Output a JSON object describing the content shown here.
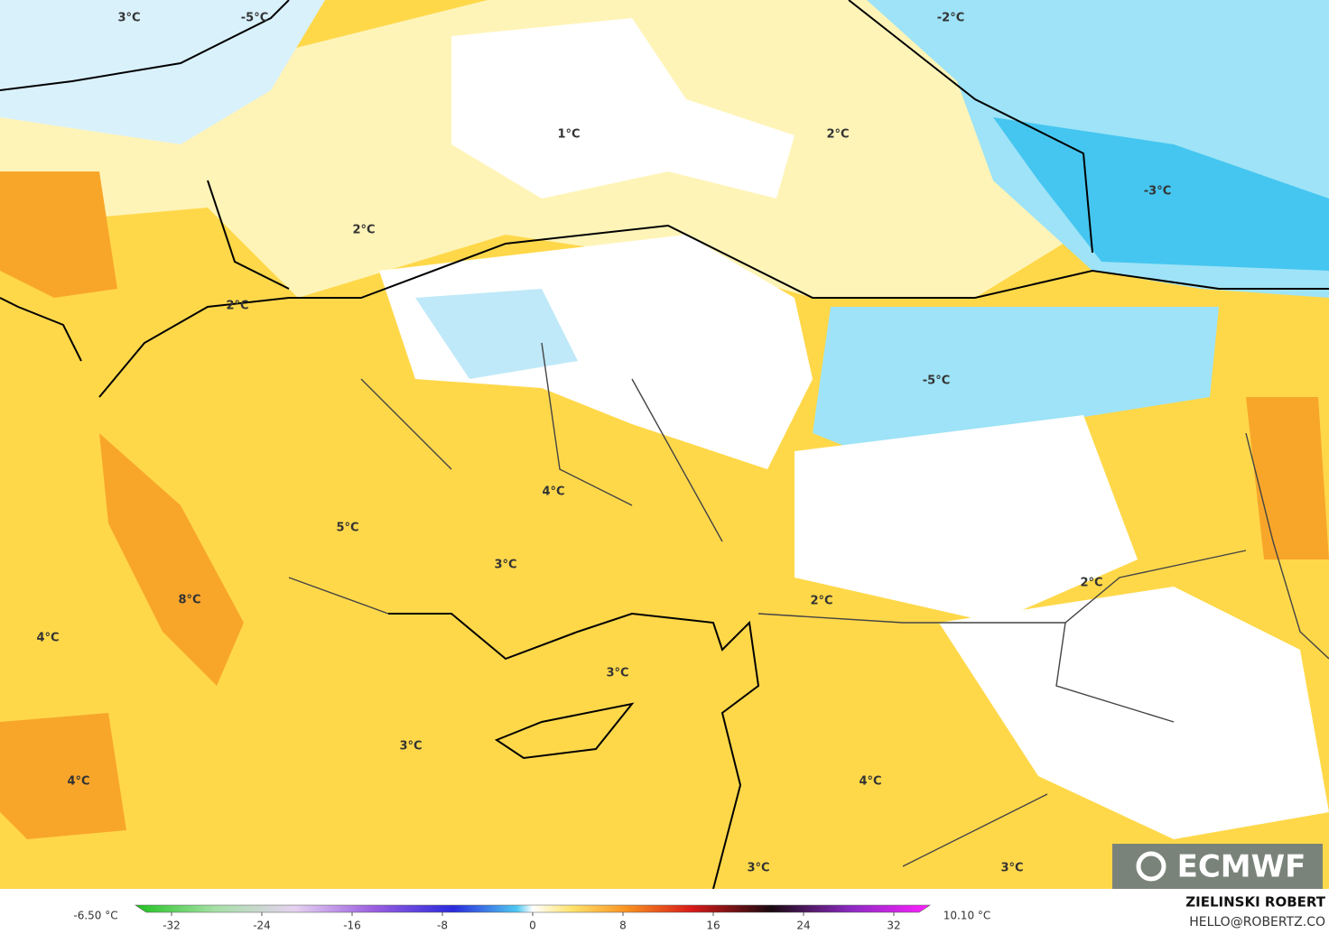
{
  "map": {
    "labels": [
      "3°C",
      "-5°C",
      "-2°C",
      "1°C",
      "2°C",
      "-3°C",
      "2°C",
      "2°C",
      "-5°C",
      "4°C",
      "5°C",
      "3°C",
      "2°C",
      "2°C",
      "8°C",
      "4°C",
      "3°C",
      "3°C",
      "4°C",
      "4°C",
      "3°C",
      "3°C"
    ]
  },
  "logo": "ECMWF",
  "colorbar": {
    "min_label": "-6.50 °C",
    "max_label": "10.10 °C",
    "ticks": [
      -32,
      -24,
      -16,
      -8,
      0,
      8,
      16,
      24,
      32
    ]
  },
  "credits": {
    "author": "ZIELINSKI ROBERT",
    "email": "HELLO@ROBERTZ.CO"
  }
}
